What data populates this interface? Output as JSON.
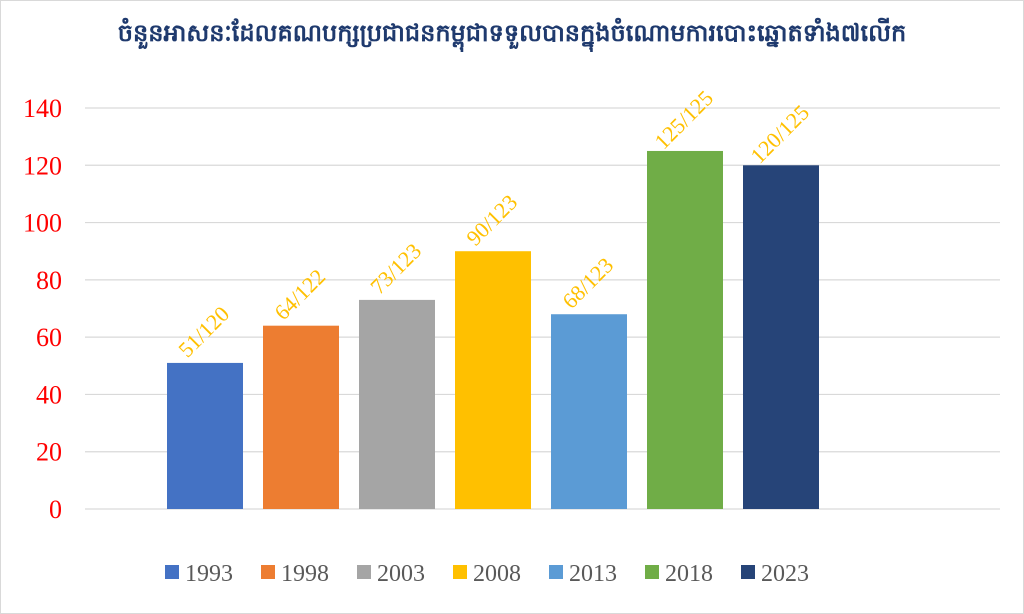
{
  "chart_data": {
    "type": "bar",
    "title": "ចំនួនអាសនៈដែលគណបក្សប្រជាជនកម្ពុជាទទួលបានក្នុងចំណោមការបោះឆ្នោតទាំង៧លើក",
    "categories": [
      "1993",
      "1998",
      "2003",
      "2008",
      "2013",
      "2018",
      "2023"
    ],
    "values": [
      51,
      64,
      73,
      90,
      68,
      125,
      120
    ],
    "data_labels": [
      "51/120",
      "64/122",
      "73/123",
      "90/123",
      "68/123",
      "125/125",
      "120/125"
    ],
    "colors": [
      "#4472c4",
      "#ed7d31",
      "#a5a5a5",
      "#ffc000",
      "#5b9bd5",
      "#70ad47",
      "#264478"
    ],
    "ylim": [
      0,
      140
    ],
    "yticks": [
      0,
      20,
      40,
      60,
      80,
      100,
      120,
      140
    ],
    "xlabel": "",
    "ylabel": "",
    "grid": true,
    "legend": "bottom",
    "tick_label_color": "#ff0000",
    "data_label_color": "#ffc000"
  }
}
